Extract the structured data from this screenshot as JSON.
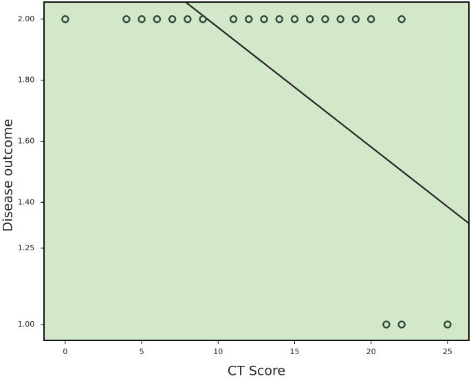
{
  "chart_data": {
    "type": "scatter",
    "xlabel": "CT Score",
    "ylabel": "Disease outcome",
    "x": [
      0,
      4,
      5,
      6,
      7,
      8,
      9,
      11,
      12,
      13,
      14,
      15,
      16,
      17,
      18,
      19,
      20,
      22,
      21,
      22,
      25
    ],
    "y": [
      2,
      2,
      2,
      2,
      2,
      2,
      2,
      2,
      2,
      2,
      2,
      2,
      2,
      2,
      2,
      2,
      2,
      2,
      1,
      1,
      1
    ],
    "color": "#2f4a3a",
    "background": "#d3e8c9",
    "fit_line": {
      "x": [
        7.87,
        26.4
      ],
      "y": [
        2.056,
        1.331
      ],
      "color": "#222222"
    },
    "xlim": [
      -1.39,
      26.4
    ],
    "ylim": [
      0.948,
      2.056
    ],
    "xticks": [
      0,
      5,
      10,
      15,
      20,
      25
    ],
    "yticks": [
      {
        "value": 1,
        "label": "1.00"
      },
      {
        "value": 1.25,
        "label": "1.25"
      },
      {
        "value": 1.4,
        "label": "1.40"
      },
      {
        "value": 1.6,
        "label": "1.60"
      },
      {
        "value": 1.8,
        "label": "1.80"
      },
      {
        "value": 2,
        "label": "2.00"
      }
    ]
  }
}
